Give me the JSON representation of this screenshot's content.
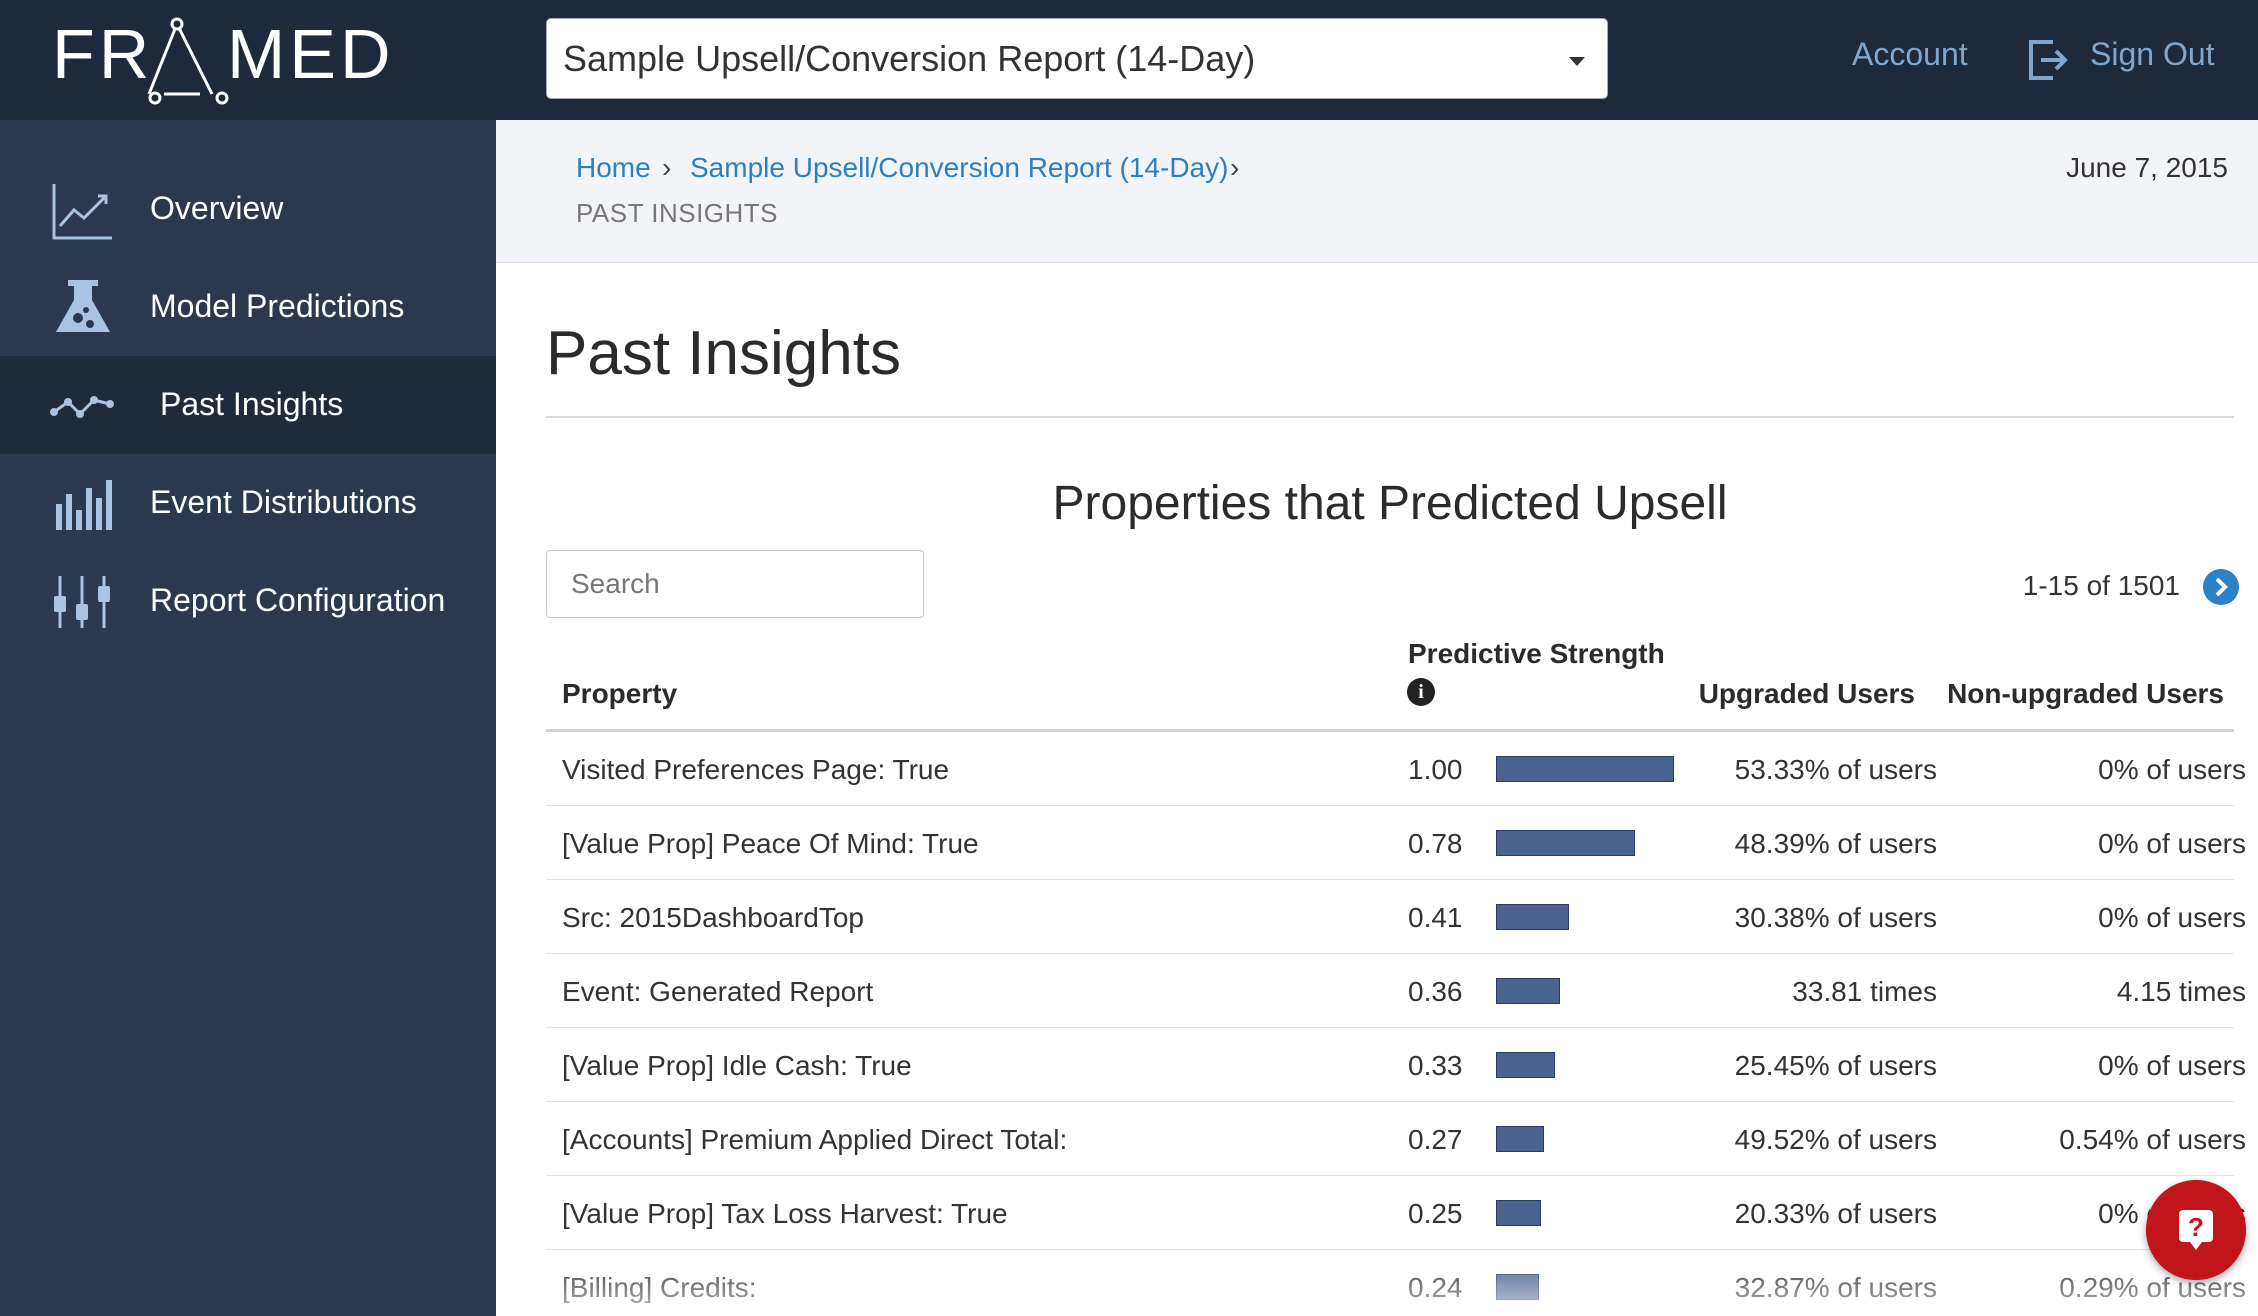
{
  "brand": {
    "name": "FRAMED"
  },
  "header": {
    "report_selector_value": "Sample Upsell/Conversion Report (14-Day)",
    "account_label": "Account",
    "signout_label": "Sign Out"
  },
  "sidebar": {
    "items": [
      {
        "label": "Overview",
        "icon": "trend-chart-icon",
        "active": false
      },
      {
        "label": "Model Predictions",
        "icon": "flask-icon",
        "active": false
      },
      {
        "label": "Past Insights",
        "icon": "line-points-icon",
        "active": true
      },
      {
        "label": "Event Distributions",
        "icon": "bar-chart-icon",
        "active": false
      },
      {
        "label": "Report Configuration",
        "icon": "sliders-icon",
        "active": false
      }
    ]
  },
  "breadcrumb": {
    "home": "Home",
    "report": "Sample Upsell/Conversion Report (14-Day)",
    "current": "PAST INSIGHTS",
    "separator": "›"
  },
  "date": "June 7, 2015",
  "page_title": "Past Insights",
  "section_title": "Properties that Predicted Upsell",
  "search": {
    "placeholder": "Search"
  },
  "pagination": {
    "text": "1-15 of 1501"
  },
  "table": {
    "headers": {
      "property": "Property",
      "strength": "Predictive Strength",
      "upgraded": "Upgraded Users",
      "non_upgraded": "Non-upgraded Users"
    },
    "rows": [
      {
        "property": "Visited Preferences Page: True",
        "score": "1.00",
        "strength": 1.0,
        "upgraded": "53.33% of users",
        "non_upgraded": "0% of users"
      },
      {
        "property": "[Value Prop] Peace Of Mind: True",
        "score": "0.78",
        "strength": 0.78,
        "upgraded": "48.39% of users",
        "non_upgraded": "0% of users"
      },
      {
        "property": "Src: 2015DashboardTop",
        "score": "0.41",
        "strength": 0.41,
        "upgraded": "30.38% of users",
        "non_upgraded": "0% of users"
      },
      {
        "property": "Event: Generated Report",
        "score": "0.36",
        "strength": 0.36,
        "upgraded": "33.81 times",
        "non_upgraded": "4.15 times"
      },
      {
        "property": "[Value Prop] Idle Cash: True",
        "score": "0.33",
        "strength": 0.33,
        "upgraded": "25.45% of users",
        "non_upgraded": "0% of users"
      },
      {
        "property": "[Accounts] Premium Applied Direct Total:",
        "score": "0.27",
        "strength": 0.27,
        "upgraded": "49.52% of users",
        "non_upgraded": "0.54% of users"
      },
      {
        "property": "[Value Prop] Tax Loss Harvest: True",
        "score": "0.25",
        "strength": 0.25,
        "upgraded": "20.33% of users",
        "non_upgraded": "0% of users"
      },
      {
        "property": "[Billing] Credits:",
        "score": "0.24",
        "strength": 0.24,
        "upgraded": "32.87% of users",
        "non_upgraded": "0.29% of users"
      }
    ]
  },
  "colors": {
    "topbar": "#1e2a3b",
    "sidebar": "#2a3950",
    "accent": "#2e7fbf",
    "bar": "#4a6290",
    "help": "#c0161b"
  }
}
